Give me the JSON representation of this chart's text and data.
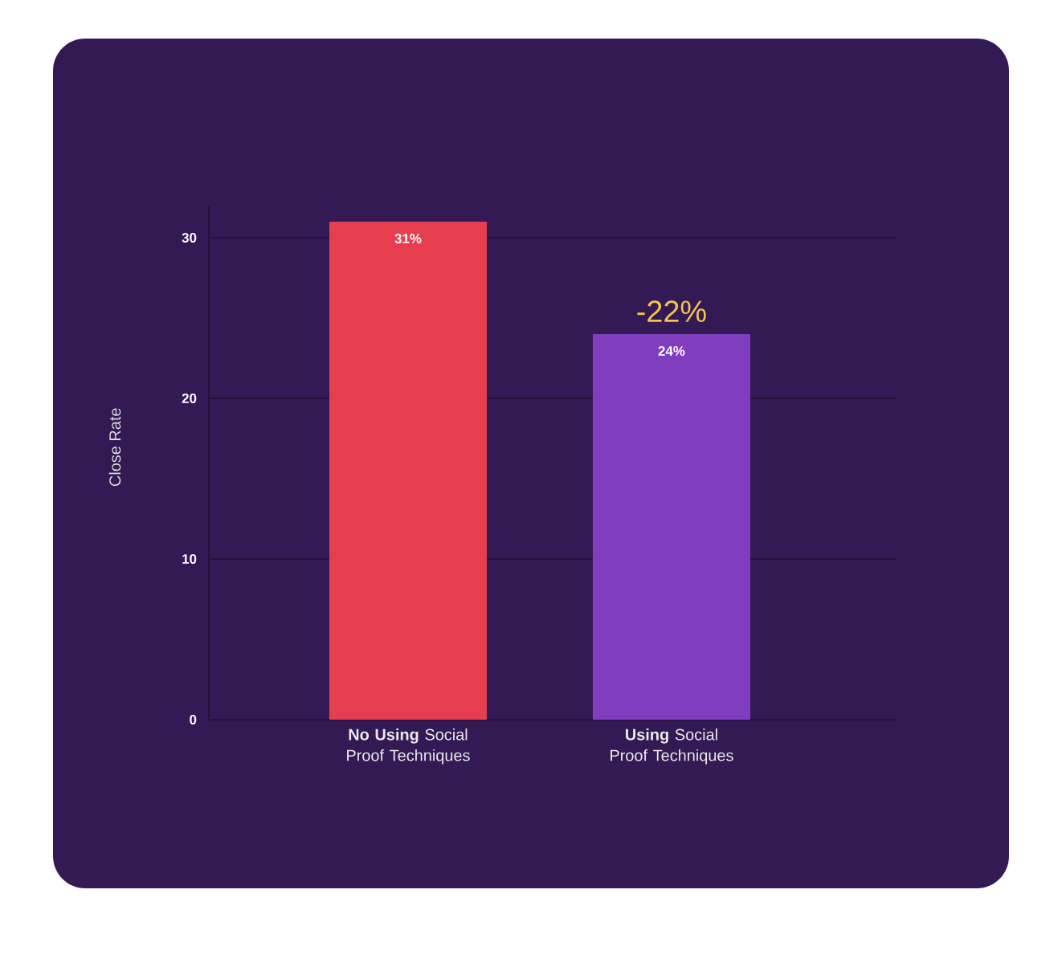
{
  "chart_data": {
    "type": "bar",
    "ylabel": "Close Rate",
    "categories": [
      "**No Using** Social Proof Techniques",
      "**Using** Social Proof Techniques"
    ],
    "values": [
      31,
      24
    ],
    "colors": [
      "#e63e4f",
      "#803dbf"
    ],
    "value_labels": [
      "31%",
      "24%"
    ],
    "annotations": [
      {
        "text": "-22%",
        "x": "**Using** Social Proof Techniques",
        "y": 24
      }
    ],
    "ylim": [
      0,
      32
    ],
    "yticks": [
      0,
      10,
      20,
      30
    ],
    "grid": "y"
  }
}
